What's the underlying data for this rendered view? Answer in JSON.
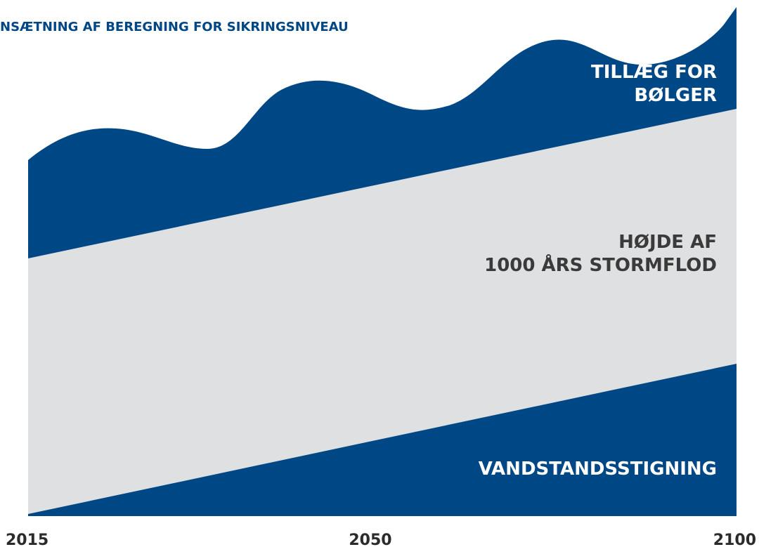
{
  "title": "NSÆTNING AF BEREGNING FOR SIKRINGSNIVEAU",
  "layers": [
    {
      "label": [
        "TILLÆG FOR",
        "BØLGER"
      ]
    },
    {
      "label": [
        "HØJDE AF",
        "1000 ÅRS STORMFLOD"
      ]
    },
    {
      "label": [
        "VANDSTANDSSTIGNING"
      ]
    }
  ],
  "x_labels": [
    "2015",
    "2050",
    "2100"
  ]
}
